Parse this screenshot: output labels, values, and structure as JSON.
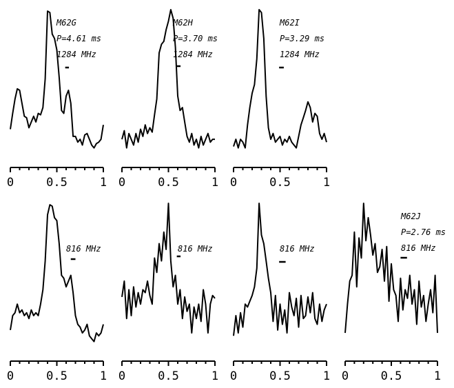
{
  "figure": {
    "background": "#ffffff",
    "line_color": "#000000"
  },
  "chart_data": [
    {
      "type": "line",
      "name": "M62G",
      "annotations": [
        "M62G",
        "P=4.61 ms",
        "1284 MHz"
      ],
      "bar_phase": [
        0.59,
        0.63
      ],
      "xlim": [
        0,
        1
      ],
      "xticks": [
        "0",
        "0.5",
        "1"
      ],
      "ylim": [
        0,
        1
      ],
      "x": [
        0,
        0.025,
        0.05,
        0.075,
        0.1,
        0.125,
        0.15,
        0.175,
        0.2,
        0.225,
        0.25,
        0.275,
        0.3,
        0.325,
        0.35,
        0.375,
        0.4,
        0.425,
        0.45,
        0.475,
        0.5,
        0.525,
        0.55,
        0.575,
        0.6,
        0.625,
        0.65,
        0.675,
        0.7,
        0.725,
        0.75,
        0.775,
        0.8,
        0.825,
        0.85,
        0.875,
        0.9,
        0.925,
        0.95,
        0.975,
        1.0
      ],
      "y": [
        0.17,
        0.28,
        0.38,
        0.45,
        0.44,
        0.35,
        0.26,
        0.25,
        0.18,
        0.22,
        0.26,
        0.22,
        0.28,
        0.27,
        0.32,
        0.52,
        0.99,
        0.98,
        0.83,
        0.8,
        0.72,
        0.53,
        0.3,
        0.28,
        0.4,
        0.44,
        0.35,
        0.12,
        0.12,
        0.08,
        0.1,
        0.06,
        0.13,
        0.14,
        0.1,
        0.06,
        0.04,
        0.07,
        0.08,
        0.1,
        0.2
      ]
    },
    {
      "type": "line",
      "name": "M62H",
      "annotations": [
        "M62H",
        "P=3.70 ms",
        "1284 MHz"
      ],
      "bar_phase": [
        0.59,
        0.63
      ],
      "xlim": [
        0,
        1
      ],
      "xticks": [
        "0",
        "0.5",
        "1"
      ],
      "ylim": [
        0,
        1
      ],
      "x": [
        0,
        0.025,
        0.05,
        0.075,
        0.1,
        0.125,
        0.15,
        0.175,
        0.2,
        0.225,
        0.25,
        0.275,
        0.3,
        0.325,
        0.35,
        0.375,
        0.4,
        0.425,
        0.45,
        0.475,
        0.5,
        0.525,
        0.55,
        0.575,
        0.6,
        0.625,
        0.65,
        0.675,
        0.7,
        0.725,
        0.75,
        0.775,
        0.8,
        0.825,
        0.85,
        0.875,
        0.9,
        0.925,
        0.95,
        0.975,
        1.0
      ],
      "y": [
        0.1,
        0.16,
        0.04,
        0.14,
        0.1,
        0.06,
        0.14,
        0.08,
        0.17,
        0.12,
        0.2,
        0.14,
        0.18,
        0.15,
        0.27,
        0.38,
        0.7,
        0.76,
        0.78,
        0.86,
        0.92,
        1.0,
        0.94,
        0.74,
        0.4,
        0.3,
        0.32,
        0.22,
        0.12,
        0.08,
        0.14,
        0.06,
        0.1,
        0.04,
        0.12,
        0.06,
        0.1,
        0.14,
        0.08,
        0.1,
        0.1
      ]
    },
    {
      "type": "line",
      "name": "M62I",
      "annotations": [
        "M62I",
        "P=3.29 ms",
        "1284 MHz"
      ],
      "bar_phase": [
        0.49,
        0.54
      ],
      "xlim": [
        0,
        1
      ],
      "xticks": [
        "0",
        "0.5",
        "1"
      ],
      "ylim": [
        0,
        1
      ],
      "x": [
        0,
        0.025,
        0.05,
        0.075,
        0.1,
        0.125,
        0.15,
        0.175,
        0.2,
        0.225,
        0.25,
        0.275,
        0.3,
        0.325,
        0.35,
        0.375,
        0.4,
        0.425,
        0.45,
        0.475,
        0.5,
        0.525,
        0.55,
        0.575,
        0.6,
        0.625,
        0.65,
        0.675,
        0.7,
        0.725,
        0.75,
        0.775,
        0.8,
        0.825,
        0.85,
        0.875,
        0.9,
        0.925,
        0.95,
        0.975,
        1.0
      ],
      "y": [
        0.05,
        0.1,
        0.04,
        0.1,
        0.08,
        0.04,
        0.2,
        0.32,
        0.42,
        0.48,
        0.66,
        1.0,
        0.98,
        0.8,
        0.4,
        0.18,
        0.1,
        0.14,
        0.08,
        0.1,
        0.12,
        0.06,
        0.1,
        0.08,
        0.12,
        0.08,
        0.06,
        0.04,
        0.12,
        0.2,
        0.25,
        0.3,
        0.36,
        0.32,
        0.22,
        0.28,
        0.26,
        0.14,
        0.1,
        0.14,
        0.08
      ]
    },
    {
      "type": "line",
      "name": "M62G",
      "annotations": [
        "816 MHz"
      ],
      "bar_phase": [
        0.65,
        0.7
      ],
      "xlim": [
        0,
        1
      ],
      "xticks": [
        "0",
        "0.5",
        "1"
      ],
      "ylim": [
        0,
        1
      ],
      "x": [
        0,
        0.025,
        0.05,
        0.075,
        0.1,
        0.125,
        0.15,
        0.175,
        0.2,
        0.225,
        0.25,
        0.275,
        0.3,
        0.325,
        0.35,
        0.375,
        0.4,
        0.425,
        0.45,
        0.475,
        0.5,
        0.525,
        0.55,
        0.575,
        0.6,
        0.625,
        0.65,
        0.675,
        0.7,
        0.725,
        0.75,
        0.775,
        0.8,
        0.825,
        0.85,
        0.875,
        0.9,
        0.925,
        0.95,
        0.975,
        1.0
      ],
      "y": [
        0.12,
        0.22,
        0.24,
        0.3,
        0.24,
        0.26,
        0.22,
        0.24,
        0.2,
        0.26,
        0.22,
        0.24,
        0.22,
        0.3,
        0.4,
        0.6,
        0.92,
        0.99,
        0.98,
        0.9,
        0.88,
        0.72,
        0.5,
        0.48,
        0.42,
        0.46,
        0.5,
        0.38,
        0.22,
        0.16,
        0.14,
        0.1,
        0.12,
        0.16,
        0.08,
        0.06,
        0.04,
        0.1,
        0.08,
        0.1,
        0.16
      ]
    },
    {
      "type": "line",
      "name": "M62H",
      "annotations": [
        "816 MHz"
      ],
      "bar_phase": [
        0.59,
        0.63
      ],
      "xlim": [
        0,
        1
      ],
      "xticks": [
        "0",
        "0.5",
        "1"
      ],
      "ylim": [
        0,
        1
      ],
      "x": [
        0,
        0.025,
        0.05,
        0.075,
        0.1,
        0.125,
        0.15,
        0.175,
        0.2,
        0.225,
        0.25,
        0.275,
        0.3,
        0.325,
        0.35,
        0.375,
        0.4,
        0.425,
        0.45,
        0.475,
        0.5,
        0.525,
        0.55,
        0.575,
        0.6,
        0.625,
        0.65,
        0.675,
        0.7,
        0.725,
        0.75,
        0.775,
        0.8,
        0.825,
        0.85,
        0.875,
        0.9,
        0.925,
        0.95,
        0.975,
        1.0
      ],
      "y": [
        0.35,
        0.46,
        0.2,
        0.4,
        0.22,
        0.42,
        0.28,
        0.38,
        0.3,
        0.4,
        0.38,
        0.46,
        0.36,
        0.3,
        0.62,
        0.52,
        0.72,
        0.6,
        0.8,
        0.68,
        1.0,
        0.6,
        0.42,
        0.5,
        0.3,
        0.4,
        0.2,
        0.35,
        0.25,
        0.3,
        0.1,
        0.28,
        0.2,
        0.3,
        0.18,
        0.4,
        0.3,
        0.1,
        0.3,
        0.36,
        0.34
      ]
    },
    {
      "type": "line",
      "name": "M62I",
      "annotations": [
        "816 MHz"
      ],
      "bar_phase": [
        0.49,
        0.56
      ],
      "xlim": [
        0,
        1
      ],
      "xticks": [
        "0",
        "0.5",
        "1"
      ],
      "ylim": [
        0,
        1
      ],
      "x": [
        0,
        0.025,
        0.05,
        0.075,
        0.1,
        0.125,
        0.15,
        0.175,
        0.2,
        0.225,
        0.25,
        0.275,
        0.3,
        0.325,
        0.35,
        0.375,
        0.4,
        0.425,
        0.45,
        0.475,
        0.5,
        0.525,
        0.55,
        0.575,
        0.6,
        0.625,
        0.65,
        0.675,
        0.7,
        0.725,
        0.75,
        0.775,
        0.8,
        0.825,
        0.85,
        0.875,
        0.9,
        0.925,
        0.95,
        0.975,
        1.0
      ],
      "y": [
        0.08,
        0.22,
        0.1,
        0.24,
        0.14,
        0.3,
        0.28,
        0.32,
        0.36,
        0.42,
        0.55,
        1.0,
        0.78,
        0.72,
        0.6,
        0.48,
        0.38,
        0.18,
        0.36,
        0.12,
        0.3,
        0.16,
        0.26,
        0.1,
        0.38,
        0.28,
        0.22,
        0.34,
        0.14,
        0.36,
        0.2,
        0.22,
        0.35,
        0.24,
        0.38,
        0.2,
        0.16,
        0.3,
        0.18,
        0.26,
        0.3
      ]
    },
    {
      "type": "line",
      "name": "M62J",
      "annotations": [
        "M62J",
        "P=2.76 ms",
        "816 MHz"
      ],
      "bar_phase": [
        0.6,
        0.67
      ],
      "xlim": [
        0,
        1
      ],
      "xticks": [
        "0",
        "0.5",
        "1"
      ],
      "ylim": [
        0,
        1
      ],
      "x": [
        0,
        0.025,
        0.05,
        0.075,
        0.1,
        0.125,
        0.15,
        0.175,
        0.2,
        0.225,
        0.25,
        0.275,
        0.3,
        0.325,
        0.35,
        0.375,
        0.4,
        0.425,
        0.45,
        0.475,
        0.5,
        0.525,
        0.55,
        0.575,
        0.6,
        0.625,
        0.65,
        0.675,
        0.7,
        0.725,
        0.75,
        0.775,
        0.8,
        0.825,
        0.85,
        0.875,
        0.9,
        0.925,
        0.95,
        0.975,
        1.0
      ],
      "y": [
        0.1,
        0.3,
        0.46,
        0.5,
        0.8,
        0.42,
        0.76,
        0.62,
        1.0,
        0.74,
        0.9,
        0.78,
        0.64,
        0.72,
        0.52,
        0.56,
        0.68,
        0.46,
        0.7,
        0.32,
        0.58,
        0.4,
        0.36,
        0.18,
        0.48,
        0.26,
        0.4,
        0.34,
        0.5,
        0.3,
        0.4,
        0.16,
        0.46,
        0.28,
        0.36,
        0.18,
        0.3,
        0.4,
        0.24,
        0.5,
        0.1
      ]
    }
  ]
}
